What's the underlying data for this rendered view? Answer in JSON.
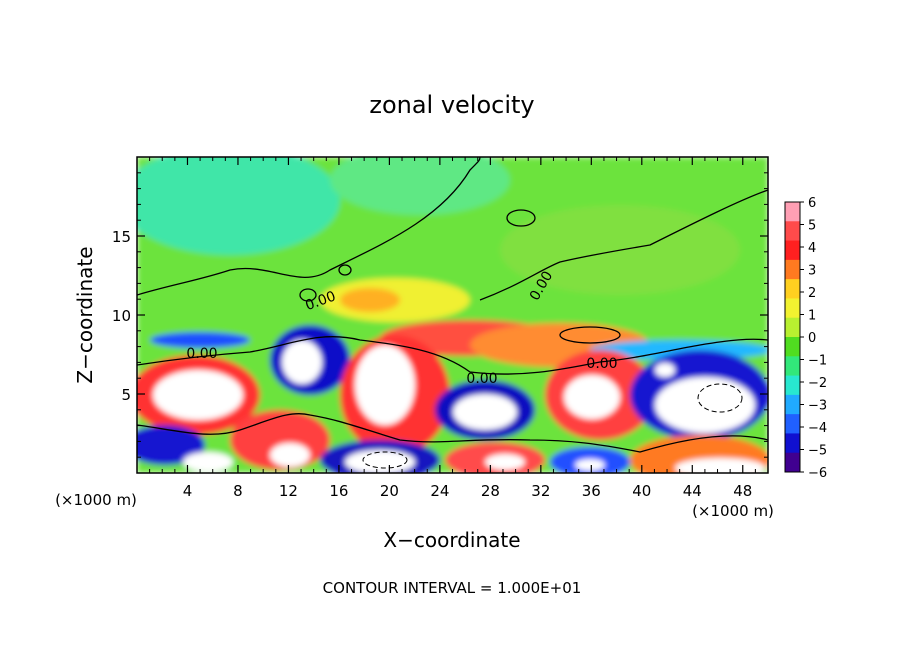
{
  "chart_data": {
    "type": "heatmap",
    "title": "zonal velocity",
    "xlabel": "X−coordinate",
    "ylabel": "Z−coordinate",
    "x_unit_label": "(×1000 m)",
    "x_unit_label_right": "(×1000 m)",
    "footer": "CONTOUR INTERVAL = 1.000E+01",
    "xlim": [
      0,
      50
    ],
    "ylim": [
      0,
      20
    ],
    "x_ticks": [
      4,
      8,
      12,
      16,
      20,
      24,
      28,
      32,
      36,
      40,
      44,
      48
    ],
    "y_ticks": [
      5,
      10,
      15
    ],
    "contour_label": "0.00",
    "colorbar": {
      "ticks": [
        6,
        5,
        4,
        3,
        2,
        1,
        0,
        -1,
        -2,
        -3,
        -4,
        -5,
        -6
      ],
      "colors": [
        "#ff9fb4",
        "#ff4b4b",
        "#ff2020",
        "#ff7a20",
        "#ffd020",
        "#f2f230",
        "#b8f030",
        "#50dd20",
        "#32e87a",
        "#28e8d0",
        "#20aaff",
        "#2060ff",
        "#1010d0",
        "#400090"
      ]
    }
  }
}
